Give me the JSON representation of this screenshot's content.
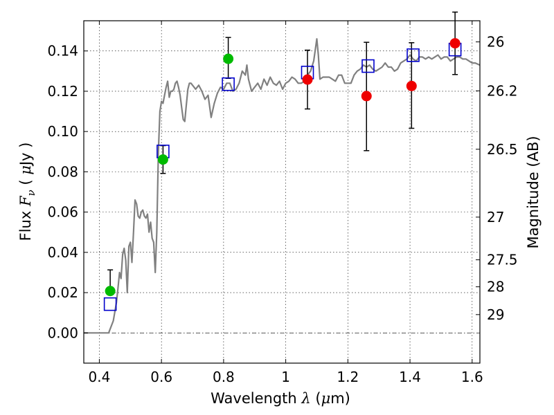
{
  "chart_data": {
    "type": "scatter",
    "xlabel": {
      "prefix": "Wavelength  ",
      "symbol": "λ",
      "suffix": " (",
      "mu": "μ",
      "unit": "m)"
    },
    "ylabel": {
      "prefix": "Flux  ",
      "symbol": "F",
      "sub": "ν",
      "suffix": "  ( ",
      "mu": "μ",
      "unit": "Jy )"
    },
    "y2label": "Magnitude (AB)",
    "xlim": [
      0.35,
      1.625
    ],
    "ylim": [
      -0.015,
      0.155
    ],
    "grid": true,
    "x_ticks": [
      {
        "value": 0.4,
        "label": "0.4"
      },
      {
        "value": 0.6,
        "label": "0.6"
      },
      {
        "value": 0.8,
        "label": "0.8"
      },
      {
        "value": 1.0,
        "label": "1"
      },
      {
        "value": 1.2,
        "label": "1.2"
      },
      {
        "value": 1.4,
        "label": "1.4"
      },
      {
        "value": 1.6,
        "label": "1.6"
      }
    ],
    "y_ticks": [
      {
        "value": 0.0,
        "label": "0.00"
      },
      {
        "value": 0.02,
        "label": "0.02"
      },
      {
        "value": 0.04,
        "label": "0.04"
      },
      {
        "value": 0.06,
        "label": "0.06"
      },
      {
        "value": 0.08,
        "label": "0.08"
      },
      {
        "value": 0.1,
        "label": "0.10"
      },
      {
        "value": 0.12,
        "label": "0.12"
      },
      {
        "value": 0.14,
        "label": "0.14"
      }
    ],
    "y2_ticks": [
      {
        "label": "26",
        "flux": 0.1445
      },
      {
        "label": "26.2",
        "flux": 0.1202
      },
      {
        "label": "26.5",
        "flux": 0.0912
      },
      {
        "label": "27",
        "flux": 0.0575
      },
      {
        "label": "27.5",
        "flux": 0.0363
      },
      {
        "label": "28",
        "flux": 0.0229
      },
      {
        "label": "29",
        "flux": 0.0091
      }
    ],
    "model_spectrum": {
      "color": "#808080",
      "points": [
        [
          0.35,
          0.0
        ],
        [
          0.43,
          0.0
        ],
        [
          0.445,
          0.006
        ],
        [
          0.455,
          0.015
        ],
        [
          0.46,
          0.022
        ],
        [
          0.465,
          0.03
        ],
        [
          0.47,
          0.027
        ],
        [
          0.475,
          0.039
        ],
        [
          0.48,
          0.042
        ],
        [
          0.485,
          0.036
        ],
        [
          0.49,
          0.02
        ],
        [
          0.495,
          0.043
        ],
        [
          0.5,
          0.045
        ],
        [
          0.505,
          0.035
        ],
        [
          0.51,
          0.05
        ],
        [
          0.515,
          0.066
        ],
        [
          0.52,
          0.064
        ],
        [
          0.525,
          0.058
        ],
        [
          0.53,
          0.057
        ],
        [
          0.535,
          0.06
        ],
        [
          0.54,
          0.061
        ],
        [
          0.545,
          0.058
        ],
        [
          0.55,
          0.057
        ],
        [
          0.555,
          0.059
        ],
        [
          0.56,
          0.05
        ],
        [
          0.565,
          0.055
        ],
        [
          0.57,
          0.047
        ],
        [
          0.575,
          0.045
        ],
        [
          0.58,
          0.03
        ],
        [
          0.585,
          0.05
        ],
        [
          0.59,
          0.09
        ],
        [
          0.595,
          0.11
        ],
        [
          0.6,
          0.115
        ],
        [
          0.605,
          0.114
        ],
        [
          0.61,
          0.118
        ],
        [
          0.615,
          0.122
        ],
        [
          0.62,
          0.125
        ],
        [
          0.625,
          0.117
        ],
        [
          0.63,
          0.12
        ],
        [
          0.635,
          0.12
        ],
        [
          0.64,
          0.121
        ],
        [
          0.645,
          0.124
        ],
        [
          0.65,
          0.125
        ],
        [
          0.655,
          0.122
        ],
        [
          0.66,
          0.118
        ],
        [
          0.665,
          0.112
        ],
        [
          0.67,
          0.106
        ],
        [
          0.675,
          0.105
        ],
        [
          0.68,
          0.113
        ],
        [
          0.685,
          0.121
        ],
        [
          0.69,
          0.124
        ],
        [
          0.695,
          0.124
        ],
        [
          0.7,
          0.123
        ],
        [
          0.705,
          0.122
        ],
        [
          0.71,
          0.121
        ],
        [
          0.72,
          0.123
        ],
        [
          0.73,
          0.12
        ],
        [
          0.74,
          0.116
        ],
        [
          0.75,
          0.118
        ],
        [
          0.76,
          0.107
        ],
        [
          0.77,
          0.114
        ],
        [
          0.78,
          0.119
        ],
        [
          0.79,
          0.122
        ],
        [
          0.8,
          0.121
        ],
        [
          0.81,
          0.124
        ],
        [
          0.82,
          0.124
        ],
        [
          0.83,
          0.12
        ],
        [
          0.84,
          0.121
        ],
        [
          0.85,
          0.124
        ],
        [
          0.86,
          0.13
        ],
        [
          0.87,
          0.128
        ],
        [
          0.875,
          0.133
        ],
        [
          0.88,
          0.126
        ],
        [
          0.89,
          0.12
        ],
        [
          0.9,
          0.122
        ],
        [
          0.91,
          0.124
        ],
        [
          0.92,
          0.121
        ],
        [
          0.93,
          0.126
        ],
        [
          0.94,
          0.123
        ],
        [
          0.95,
          0.127
        ],
        [
          0.96,
          0.124
        ],
        [
          0.97,
          0.123
        ],
        [
          0.98,
          0.125
        ],
        [
          0.99,
          0.121
        ],
        [
          1.0,
          0.124
        ],
        [
          1.01,
          0.125
        ],
        [
          1.02,
          0.127
        ],
        [
          1.03,
          0.126
        ],
        [
          1.04,
          0.124
        ],
        [
          1.05,
          0.124
        ],
        [
          1.06,
          0.125
        ],
        [
          1.07,
          0.128
        ],
        [
          1.08,
          0.13
        ],
        [
          1.09,
          0.135
        ],
        [
          1.1,
          0.146
        ],
        [
          1.105,
          0.138
        ],
        [
          1.11,
          0.126
        ],
        [
          1.12,
          0.127
        ],
        [
          1.13,
          0.127
        ],
        [
          1.14,
          0.127
        ],
        [
          1.15,
          0.126
        ],
        [
          1.16,
          0.125
        ],
        [
          1.17,
          0.128
        ],
        [
          1.18,
          0.128
        ],
        [
          1.19,
          0.124
        ],
        [
          1.2,
          0.124
        ],
        [
          1.21,
          0.124
        ],
        [
          1.22,
          0.128
        ],
        [
          1.23,
          0.13
        ],
        [
          1.24,
          0.131
        ],
        [
          1.25,
          0.133
        ],
        [
          1.26,
          0.132
        ],
        [
          1.27,
          0.133
        ],
        [
          1.28,
          0.131
        ],
        [
          1.29,
          0.13
        ],
        [
          1.3,
          0.131
        ],
        [
          1.31,
          0.132
        ],
        [
          1.32,
          0.134
        ],
        [
          1.33,
          0.132
        ],
        [
          1.34,
          0.132
        ],
        [
          1.35,
          0.13
        ],
        [
          1.36,
          0.131
        ],
        [
          1.37,
          0.134
        ],
        [
          1.38,
          0.135
        ],
        [
          1.39,
          0.136
        ],
        [
          1.4,
          0.138
        ],
        [
          1.41,
          0.136
        ],
        [
          1.42,
          0.135
        ],
        [
          1.43,
          0.137
        ],
        [
          1.44,
          0.137
        ],
        [
          1.45,
          0.136
        ],
        [
          1.46,
          0.137
        ],
        [
          1.47,
          0.136
        ],
        [
          1.48,
          0.137
        ],
        [
          1.49,
          0.138
        ],
        [
          1.5,
          0.136
        ],
        [
          1.51,
          0.137
        ],
        [
          1.52,
          0.137
        ],
        [
          1.53,
          0.135
        ],
        [
          1.54,
          0.136
        ],
        [
          1.55,
          0.137
        ],
        [
          1.56,
          0.137
        ],
        [
          1.57,
          0.136
        ],
        [
          1.58,
          0.136
        ],
        [
          1.59,
          0.135
        ],
        [
          1.6,
          0.134
        ],
        [
          1.61,
          0.134
        ],
        [
          1.625,
          0.133
        ]
      ]
    },
    "model_photometry": {
      "marker": "open-square",
      "color": "#0000cc",
      "points": [
        [
          0.435,
          0.0143
        ],
        [
          0.605,
          0.0901
        ],
        [
          0.815,
          0.1235
        ],
        [
          1.07,
          0.1293
        ],
        [
          1.265,
          0.1325
        ],
        [
          1.41,
          0.1379
        ],
        [
          1.545,
          0.1407
        ]
      ]
    },
    "observed_green": {
      "marker": "filled-circle",
      "color": "#00bb00",
      "points": [
        {
          "x": 0.435,
          "y": 0.0208,
          "err_low": 0.0,
          "err_high": 0.0105
        },
        {
          "x": 0.605,
          "y": 0.0861,
          "err_low": 0.0069,
          "err_high": 0.0069
        },
        {
          "x": 0.815,
          "y": 0.1361,
          "err_low": 0.0097,
          "err_high": 0.0106
        }
      ]
    },
    "observed_red": {
      "marker": "filled-circle",
      "color": "#ee0000",
      "points": [
        {
          "x": 1.07,
          "y": 0.1258,
          "err_low": 0.0146,
          "err_high": 0.0146
        },
        {
          "x": 1.26,
          "y": 0.1176,
          "err_low": 0.0271,
          "err_high": 0.0267
        },
        {
          "x": 1.405,
          "y": 0.1226,
          "err_low": 0.021,
          "err_high": 0.0215
        },
        {
          "x": 1.545,
          "y": 0.1438,
          "err_low": 0.0155,
          "err_high": 0.0155
        }
      ]
    }
  }
}
